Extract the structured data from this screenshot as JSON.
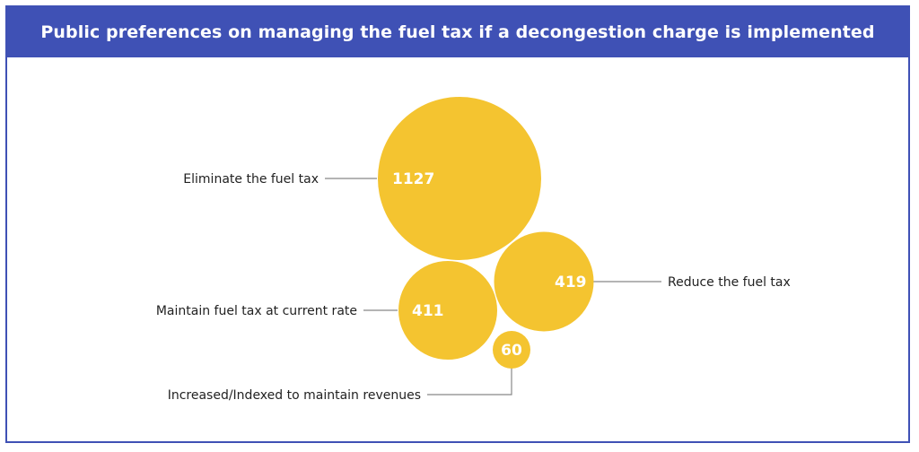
{
  "chart_data": {
    "type": "bubble",
    "title": "Public preferences on managing the fuel tax if a decongestion charge is implemented",
    "categories": [
      "Eliminate the fuel tax",
      "Reduce the fuel tax",
      "Maintain fuel tax at current rate",
      "Increased/Indexed to maintain revenues"
    ],
    "values": [
      1127,
      419,
      411,
      60
    ],
    "value_labels": [
      "1127",
      "419",
      "411",
      "60"
    ]
  },
  "colors": {
    "header": "#3f51b5",
    "bubble": "#f4c430",
    "leader": "#888888"
  }
}
